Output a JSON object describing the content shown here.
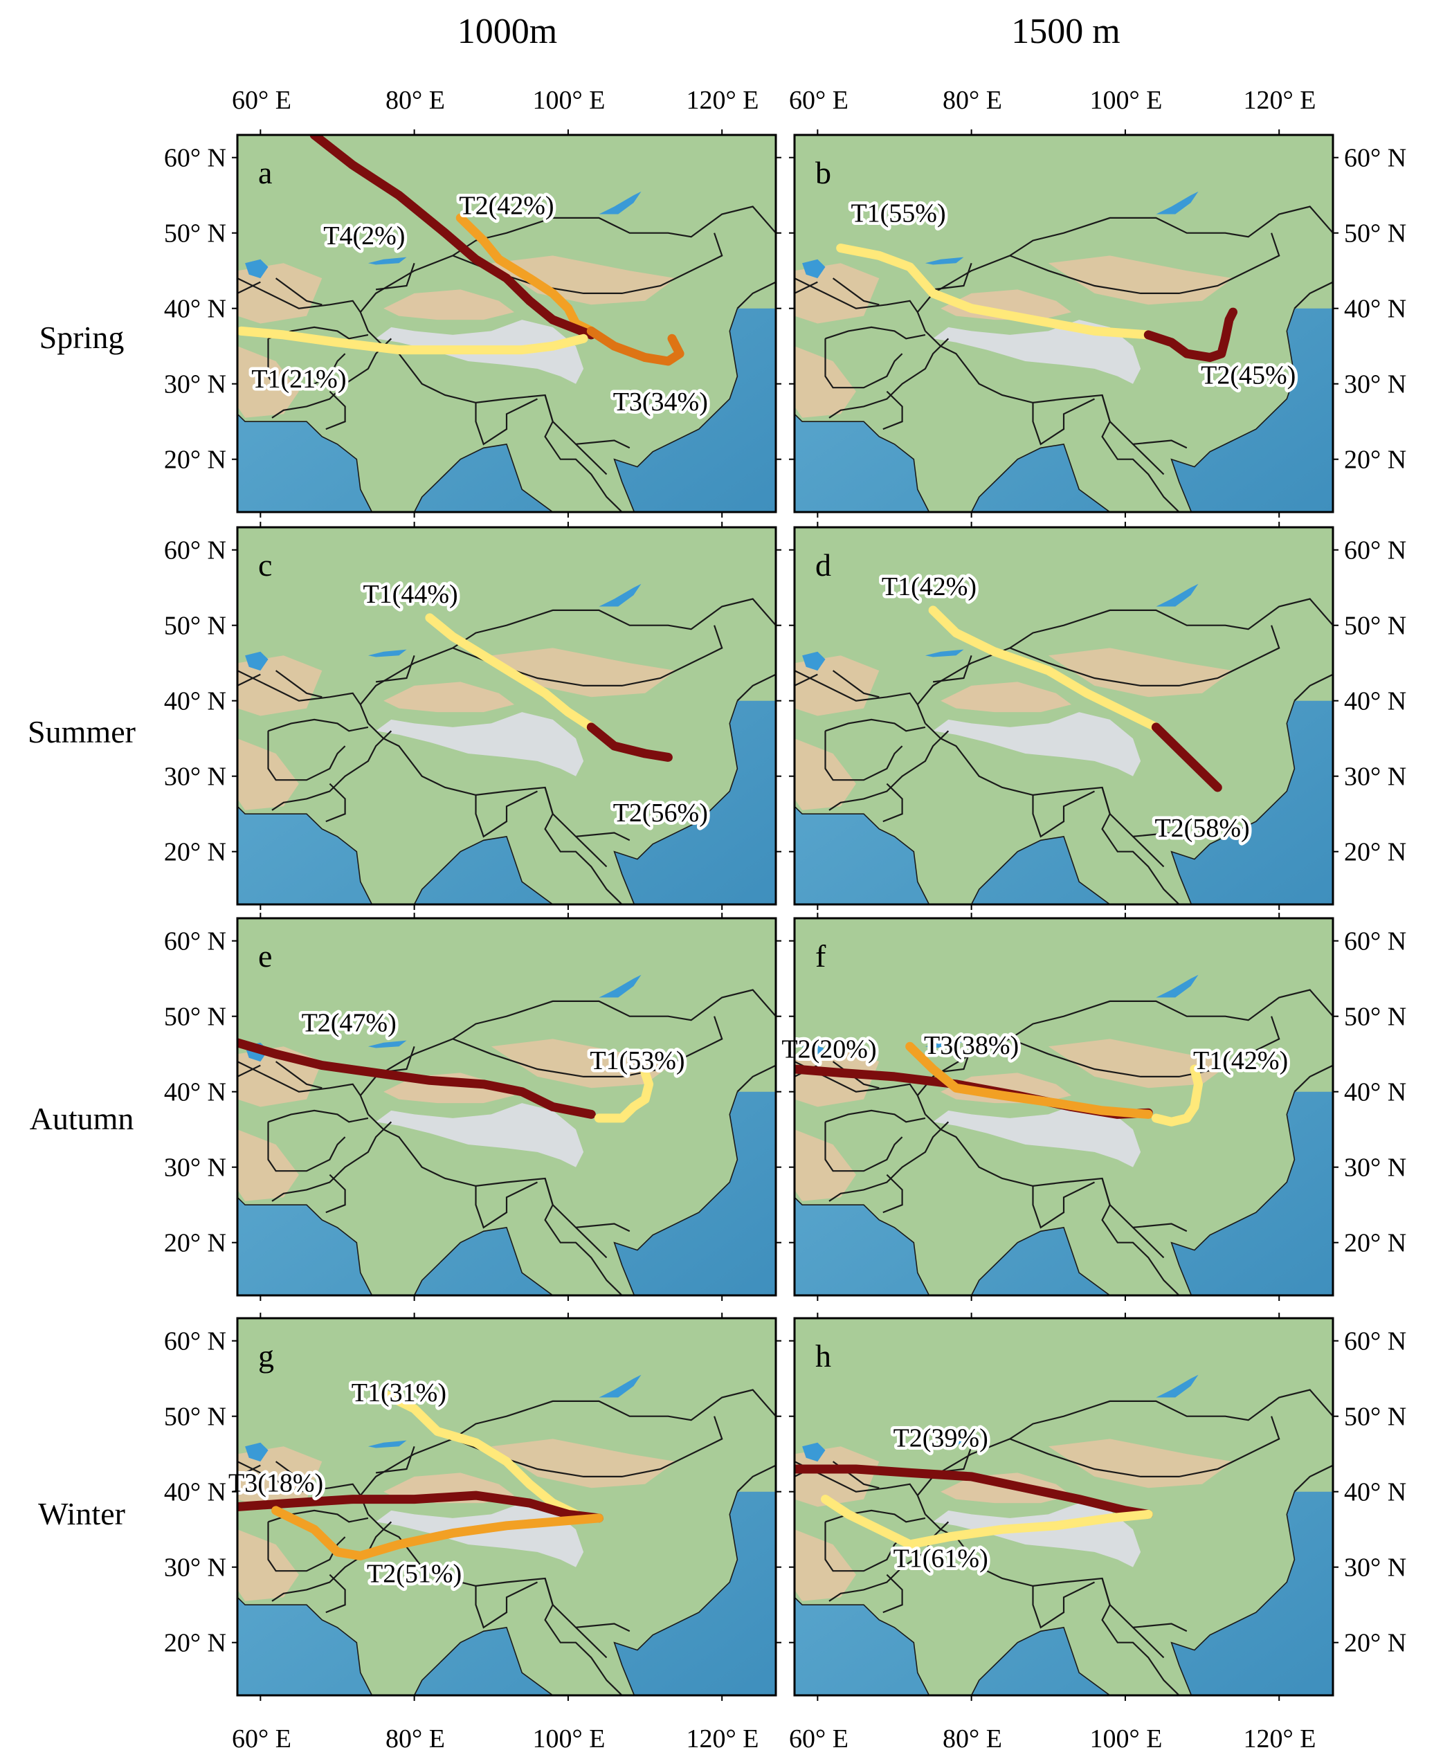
{
  "figure": {
    "col_titles": [
      "1000m",
      "1500 m"
    ],
    "row_labels": [
      "Spring",
      "Summer",
      "Autumn",
      "Winter"
    ],
    "lon_ticks": [
      60,
      80,
      100,
      120
    ],
    "lat_ticks": [
      20,
      30,
      40,
      50,
      60
    ],
    "lon_tick_labels": [
      "60° E",
      "80° E",
      "100° E",
      "120° E"
    ],
    "lat_tick_labels": [
      "20° N",
      "30° N",
      "40° N",
      "50° N",
      "60° N"
    ],
    "lon_range": [
      57,
      127
    ],
    "lat_range": [
      13,
      63
    ],
    "colors": {
      "ocean": "#4f9fc7",
      "land": "#a9cc98",
      "plateau": "#d9dde0",
      "desert": "#e8c6a4",
      "border": "#1a1a1a",
      "trajectory": {
        "light_yellow": "#ffe97a",
        "orange": "#f2a024",
        "dark_orange": "#de7414",
        "dark_red": "#7c0d0d"
      }
    }
  },
  "panels": [
    {
      "letter": "a",
      "row": 0,
      "col": 0,
      "trajectories": [
        {
          "label": "T2(42%)",
          "color": "orange",
          "label_at": [
            92,
            52.5
          ],
          "path": [
            [
              86,
              52
            ],
            [
              89,
              49
            ],
            [
              91,
              46.5
            ],
            [
              95,
              44
            ],
            [
              98,
              42
            ],
            [
              100,
              40
            ],
            [
              101,
              38
            ],
            [
              103,
              37
            ]
          ]
        },
        {
          "label": "T4(2%)",
          "color": "dark_red",
          "label_at": [
            73.5,
            48.5
          ],
          "path": [
            [
              67,
              63
            ],
            [
              72,
              59
            ],
            [
              78,
              55
            ],
            [
              84,
              50
            ],
            [
              88,
              46.5
            ],
            [
              92,
              44
            ],
            [
              95,
              41
            ],
            [
              98,
              38.5
            ],
            [
              103,
              36.5
            ]
          ]
        },
        {
          "label": "T1(21%)",
          "color": "light_yellow",
          "label_at": [
            65,
            29.5
          ],
          "path": [
            [
              57.5,
              37
            ],
            [
              63,
              36.5
            ],
            [
              70,
              35.5
            ],
            [
              78,
              34.5
            ],
            [
              86,
              34.5
            ],
            [
              94,
              34.5
            ],
            [
              98,
              35
            ],
            [
              102,
              36
            ]
          ]
        },
        {
          "label": "T3(34%)",
          "color": "dark_orange",
          "label_at": [
            112,
            26.5
          ],
          "path": [
            [
              103,
              37
            ],
            [
              106,
              35
            ],
            [
              110,
              33.5
            ],
            [
              113,
              33
            ],
            [
              114.5,
              34
            ],
            [
              113.5,
              36
            ]
          ]
        }
      ]
    },
    {
      "letter": "b",
      "row": 0,
      "col": 1,
      "trajectories": [
        {
          "label": "T1(55%)",
          "color": "light_yellow",
          "label_at": [
            70.5,
            51.5
          ],
          "path": [
            [
              63,
              48
            ],
            [
              68,
              47
            ],
            [
              72,
              45.5
            ],
            [
              75,
              42
            ],
            [
              80,
              40
            ],
            [
              88,
              38.5
            ],
            [
              96,
              37
            ],
            [
              103,
              36.5
            ]
          ]
        },
        {
          "label": "T2(45%)",
          "color": "dark_red",
          "label_at": [
            116,
            30
          ],
          "path": [
            [
              103,
              36.5
            ],
            [
              106,
              35.5
            ],
            [
              108,
              34
            ],
            [
              111,
              33.5
            ],
            [
              112.5,
              34
            ],
            [
              113,
              36
            ],
            [
              113.5,
              38.5
            ],
            [
              114,
              39.5
            ]
          ]
        }
      ]
    },
    {
      "letter": "c",
      "row": 1,
      "col": 0,
      "trajectories": [
        {
          "label": "T1(44%)",
          "color": "light_yellow",
          "label_at": [
            79.5,
            53
          ],
          "path": [
            [
              82,
              51
            ],
            [
              85,
              48.5
            ],
            [
              89,
              46
            ],
            [
              93,
              43.5
            ],
            [
              97,
              41
            ],
            [
              100,
              38.5
            ],
            [
              103,
              36.5
            ]
          ]
        },
        {
          "label": "T2(56%)",
          "color": "dark_red",
          "label_at": [
            112,
            24
          ],
          "path": [
            [
              103,
              36.5
            ],
            [
              106,
              34
            ],
            [
              110,
              33
            ],
            [
              113,
              32.5
            ]
          ]
        }
      ]
    },
    {
      "letter": "d",
      "row": 1,
      "col": 1,
      "trajectories": [
        {
          "label": "T1(42%)",
          "color": "light_yellow",
          "label_at": [
            74.5,
            54
          ],
          "path": [
            [
              75,
              52
            ],
            [
              78,
              49
            ],
            [
              83,
              46.5
            ],
            [
              90,
              44
            ],
            [
              95,
              41
            ],
            [
              100,
              38.5
            ],
            [
              104,
              36.5
            ]
          ]
        },
        {
          "label": "T2(58%)",
          "color": "dark_red",
          "label_at": [
            110,
            22
          ],
          "path": [
            [
              104,
              36.5
            ],
            [
              107,
              33.5
            ],
            [
              110,
              30.5
            ],
            [
              112,
              28.5
            ]
          ]
        }
      ]
    },
    {
      "letter": "e",
      "row": 2,
      "col": 0,
      "trajectories": [
        {
          "label": "T2(47%)",
          "color": "dark_red",
          "label_at": [
            71.5,
            48
          ],
          "path": [
            [
              57,
              46.5
            ],
            [
              62,
              45
            ],
            [
              68,
              43.5
            ],
            [
              75,
              42.5
            ],
            [
              82,
              41.5
            ],
            [
              89,
              41
            ],
            [
              94,
              40
            ],
            [
              98,
              38
            ],
            [
              103,
              37
            ]
          ]
        },
        {
          "label": "T1(53%)",
          "color": "light_yellow",
          "label_at": [
            109,
            43
          ],
          "path": [
            [
              104,
              36.5
            ],
            [
              107,
              36.5
            ],
            [
              108.5,
              38
            ],
            [
              110,
              39
            ],
            [
              110.5,
              41
            ],
            [
              110,
              42.5
            ]
          ]
        }
      ]
    },
    {
      "letter": "f",
      "row": 2,
      "col": 1,
      "trajectories": [
        {
          "label": "T2(20%)",
          "color": "dark_red",
          "label_at": [
            61.5,
            44.5
          ],
          "path": [
            [
              57,
              43
            ],
            [
              63,
              42.5
            ],
            [
              70,
              42
            ],
            [
              78,
              41
            ],
            [
              86,
              39.5
            ],
            [
              93,
              38
            ],
            [
              99,
              37
            ],
            [
              103,
              37.2
            ]
          ]
        },
        {
          "label": "T3(38%)",
          "color": "orange",
          "label_at": [
            80,
            45
          ],
          "path": [
            [
              72,
              46
            ],
            [
              75,
              43
            ],
            [
              78,
              40.5
            ],
            [
              84,
              39.5
            ],
            [
              91,
              38.5
            ],
            [
              97,
              37.5
            ],
            [
              103,
              37
            ]
          ]
        },
        {
          "label": "T1(42%)",
          "color": "light_yellow",
          "label_at": [
            115,
            43
          ],
          "path": [
            [
              104,
              36.5
            ],
            [
              106,
              36
            ],
            [
              108,
              36.5
            ],
            [
              109,
              38
            ],
            [
              109.5,
              41
            ],
            [
              109,
              43
            ]
          ]
        }
      ]
    },
    {
      "letter": "g",
      "row": 3,
      "col": 0,
      "trajectories": [
        {
          "label": "T1(31%)",
          "color": "light_yellow",
          "label_at": [
            78,
            52
          ],
          "path": [
            [
              76,
              53
            ],
            [
              80,
              51
            ],
            [
              83,
              48
            ],
            [
              88,
              46.5
            ],
            [
              92,
              44
            ],
            [
              95,
              41
            ],
            [
              98,
              38.5
            ],
            [
              101,
              37
            ]
          ]
        },
        {
          "label": "T3(18%)",
          "color": "dark_red",
          "label_at": [
            62,
            40
          ],
          "path": [
            [
              57,
              38
            ],
            [
              64,
              38.5
            ],
            [
              72,
              39
            ],
            [
              80,
              39
            ],
            [
              88,
              39.5
            ],
            [
              95,
              38.5
            ],
            [
              100,
              37
            ],
            [
              104,
              36.5
            ]
          ]
        },
        {
          "label": "T2(51%)",
          "color": "orange",
          "label_at": [
            80,
            28
          ],
          "path": [
            [
              62,
              37.5
            ],
            [
              67,
              35
            ],
            [
              70,
              32
            ],
            [
              73,
              31.5
            ],
            [
              78,
              33
            ],
            [
              85,
              34.5
            ],
            [
              92,
              35.5
            ],
            [
              98,
              36
            ],
            [
              104,
              36.5
            ]
          ]
        }
      ]
    },
    {
      "letter": "h",
      "row": 3,
      "col": 1,
      "trajectories": [
        {
          "label": "T2(39%)",
          "color": "dark_red",
          "label_at": [
            76,
            46
          ],
          "path": [
            [
              57,
              43
            ],
            [
              65,
              43
            ],
            [
              72,
              42.5
            ],
            [
              80,
              42
            ],
            [
              87,
              40.5
            ],
            [
              94,
              39
            ],
            [
              100,
              37.5
            ],
            [
              103,
              37
            ]
          ]
        },
        {
          "label": "T1(61%)",
          "color": "light_yellow",
          "label_at": [
            76,
            30
          ],
          "path": [
            [
              61,
              39
            ],
            [
              64,
              37
            ],
            [
              68,
              35
            ],
            [
              72,
              33
            ],
            [
              77,
              34
            ],
            [
              84,
              35
            ],
            [
              91,
              35.5
            ],
            [
              98,
              36.5
            ],
            [
              103,
              37
            ]
          ]
        }
      ]
    }
  ]
}
